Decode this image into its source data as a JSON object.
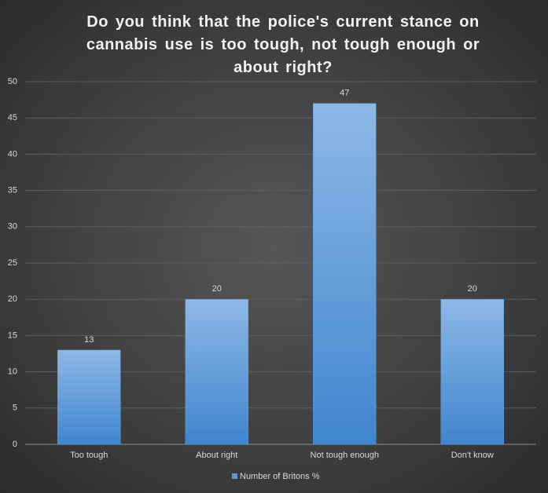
{
  "chart_data": {
    "type": "bar",
    "title": "Do you think that the police's current stance on cannabis use is too tough, not tough enough or about right?",
    "categories": [
      "Too tough",
      "About right",
      "Not tough enough",
      "Don't know"
    ],
    "series": [
      {
        "name": "Number of Britons %",
        "color": "#5b9bd5",
        "values": [
          13,
          20,
          47,
          20
        ]
      }
    ],
    "ylim": [
      0,
      50
    ],
    "yticks": [
      0,
      5,
      10,
      15,
      20,
      25,
      30,
      35,
      40,
      45,
      50
    ],
    "grid": true,
    "legend": "bottom"
  }
}
